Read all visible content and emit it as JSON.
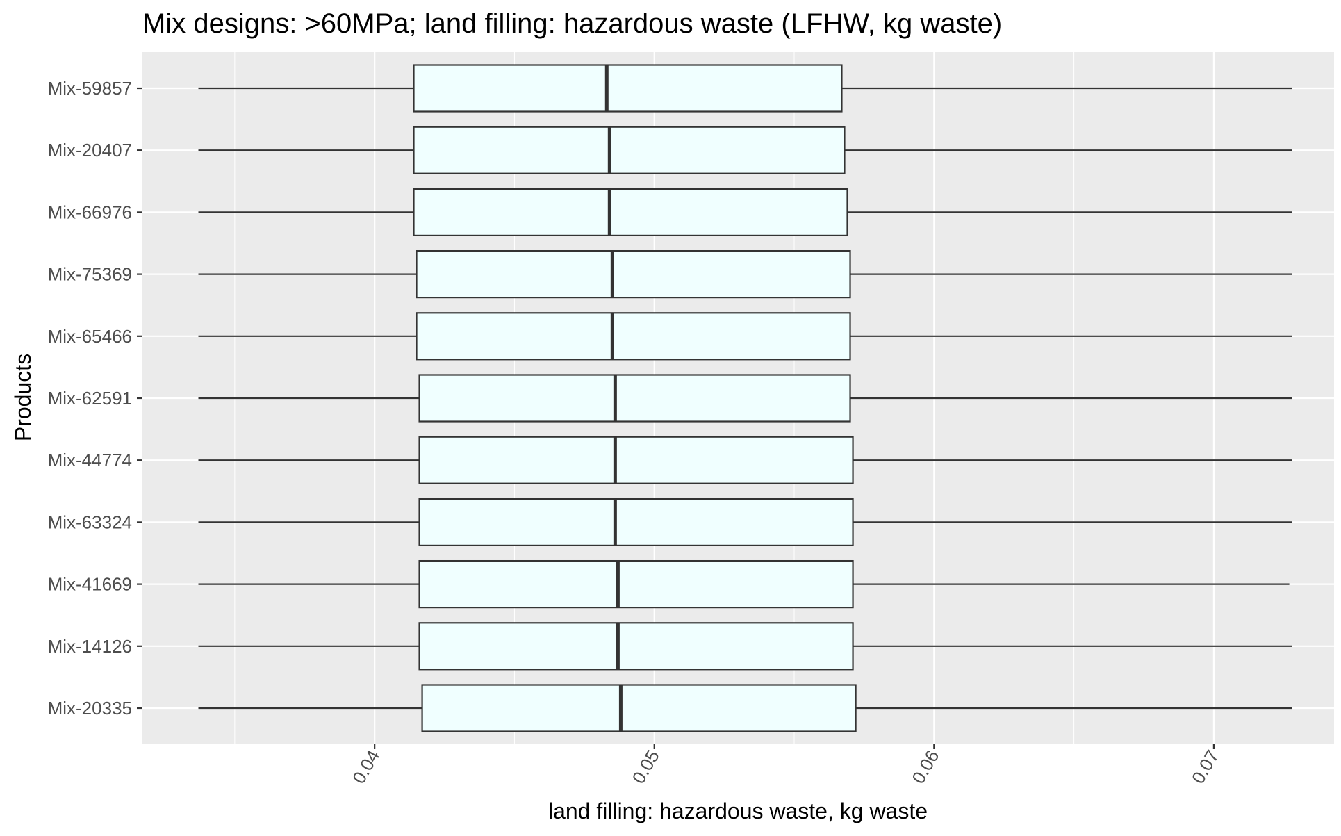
{
  "chart_data": {
    "type": "boxplot",
    "title": "Mix designs: >60MPa; land filling: hazardous waste (LFHW, kg waste)",
    "xlabel": "land filling: hazardous waste, kg waste",
    "ylabel": "Products",
    "xlim": [
      0.0317,
      0.0743
    ],
    "x_ticks": [
      0.04,
      0.05,
      0.06,
      0.07
    ],
    "x_tick_labels": [
      "0.04",
      "0.05",
      "0.06",
      "0.07"
    ],
    "grid": true,
    "colors": {
      "panel": "#ebebeb",
      "grid": "#ffffff",
      "box_fill": "#f0ffff",
      "box_stroke": "#333333"
    },
    "categories": [
      "Mix-59857",
      "Mix-20407",
      "Mix-66976",
      "Mix-75369",
      "Mix-65466",
      "Mix-62591",
      "Mix-44774",
      "Mix-63324",
      "Mix-41669",
      "Mix-14126",
      "Mix-20335"
    ],
    "boxes": [
      {
        "label": "Mix-59857",
        "min": 0.0337,
        "q1": 0.0414,
        "median": 0.0483,
        "q3": 0.0567,
        "max": 0.0728
      },
      {
        "label": "Mix-20407",
        "min": 0.0337,
        "q1": 0.0414,
        "median": 0.0484,
        "q3": 0.0568,
        "max": 0.0728
      },
      {
        "label": "Mix-66976",
        "min": 0.0337,
        "q1": 0.0414,
        "median": 0.0484,
        "q3": 0.0569,
        "max": 0.0728
      },
      {
        "label": "Mix-75369",
        "min": 0.0337,
        "q1": 0.0415,
        "median": 0.0485,
        "q3": 0.057,
        "max": 0.0728
      },
      {
        "label": "Mix-65466",
        "min": 0.0337,
        "q1": 0.0415,
        "median": 0.0485,
        "q3": 0.057,
        "max": 0.0728
      },
      {
        "label": "Mix-62591",
        "min": 0.0337,
        "q1": 0.0416,
        "median": 0.0486,
        "q3": 0.057,
        "max": 0.0728
      },
      {
        "label": "Mix-44774",
        "min": 0.0337,
        "q1": 0.0416,
        "median": 0.0486,
        "q3": 0.0571,
        "max": 0.0728
      },
      {
        "label": "Mix-63324",
        "min": 0.0337,
        "q1": 0.0416,
        "median": 0.0486,
        "q3": 0.0571,
        "max": 0.0728
      },
      {
        "label": "Mix-41669",
        "min": 0.0337,
        "q1": 0.0416,
        "median": 0.0487,
        "q3": 0.0571,
        "max": 0.0727
      },
      {
        "label": "Mix-14126",
        "min": 0.0337,
        "q1": 0.0416,
        "median": 0.0487,
        "q3": 0.0571,
        "max": 0.0728
      },
      {
        "label": "Mix-20335",
        "min": 0.0337,
        "q1": 0.0417,
        "median": 0.0488,
        "q3": 0.0572,
        "max": 0.0728
      }
    ]
  }
}
